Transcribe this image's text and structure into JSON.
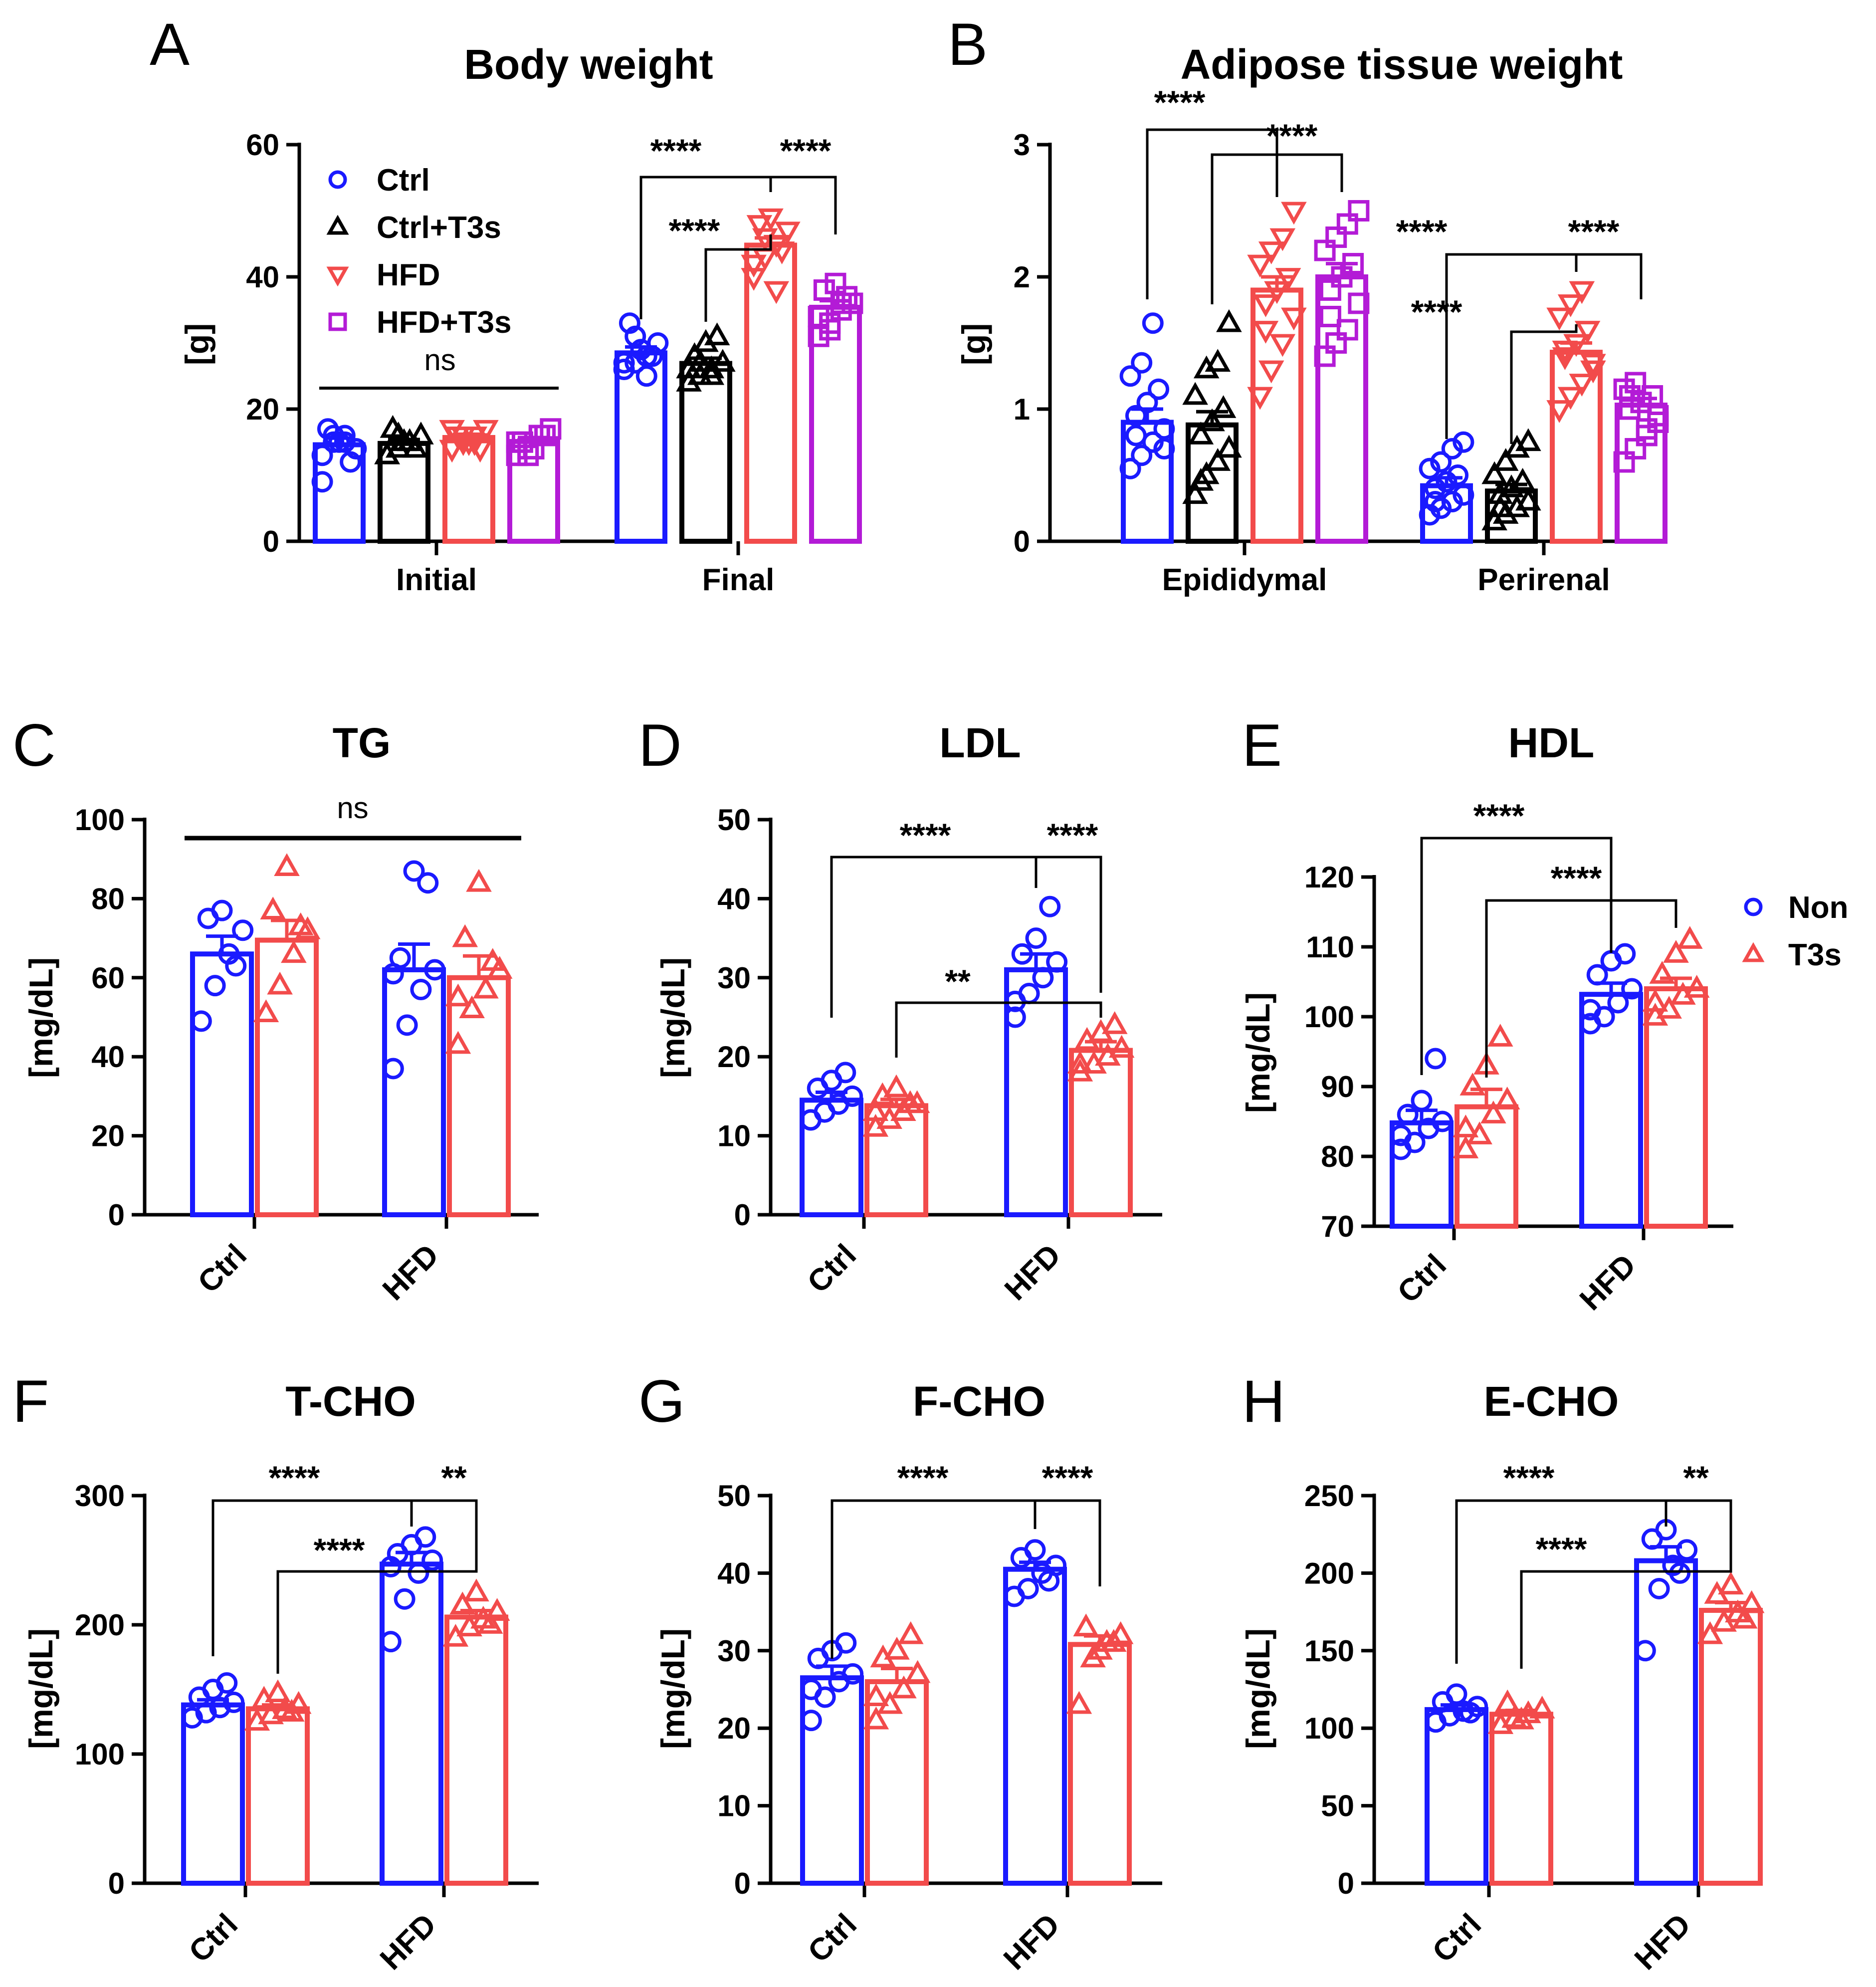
{
  "colors": {
    "blue": "#1a1aff",
    "black": "#000000",
    "red": "#f24b4b",
    "purple": "#b31bd6"
  },
  "chart_data": [
    {
      "id": "A",
      "type": "bar",
      "title": "Body weight",
      "ylabel": "[g]",
      "ylim": [
        0,
        60
      ],
      "yticks": [
        "0",
        "20",
        "40",
        "60"
      ],
      "categories": [
        "Initial",
        "Final"
      ],
      "legend_position": "top-left",
      "series": [
        {
          "name": "Ctrl",
          "marker": "circle",
          "color_key": "blue",
          "values": [
            14.6,
            28.5
          ],
          "sem": [
            1.0,
            0.9
          ],
          "points": [
            [
              13,
              15,
              16,
              14,
              17,
              15,
              12,
              9,
              16,
              15
            ],
            [
              26,
              27,
              28,
              30,
              33,
              29,
              28,
              27,
              31,
              25
            ]
          ]
        },
        {
          "name": "Ctrl+T3s",
          "marker": "triangle",
          "color_key": "black",
          "values": [
            14.8,
            26.9
          ],
          "sem": [
            0.6,
            0.8
          ],
          "points": [
            [
              13,
              14,
              15,
              16,
              17,
              15,
              14,
              13,
              16,
              15
            ],
            [
              24,
              25,
              26,
              27,
              28,
              30,
              31,
              26,
              27,
              25
            ]
          ]
        },
        {
          "name": "HFD",
          "marker": "triangle-down",
          "color_key": "red",
          "values": [
            15.7,
            44.8
          ],
          "sem": [
            0.5,
            1.1
          ],
          "points": [
            [
              14,
              15,
              16,
              17,
              16,
              15,
              14,
              17,
              16,
              15
            ],
            [
              40,
              43,
              45,
              47,
              48,
              49,
              44,
              42,
              46,
              38
            ]
          ]
        },
        {
          "name": "HFD+T3s",
          "marker": "square",
          "color_key": "purple",
          "values": [
            15.1,
            35.4
          ],
          "sem": [
            0.6,
            1.0
          ],
          "points": [
            [
              13,
              14,
              16,
              17,
              15,
              14,
              16,
              15,
              13,
              16
            ],
            [
              31,
              33,
              35,
              36,
              38,
              39,
              37,
              34,
              32,
              36
            ]
          ]
        }
      ],
      "annotations": {
        "ns": "ns",
        "sig": "****"
      }
    },
    {
      "id": "B",
      "type": "bar",
      "title": "Adipose tissue weight",
      "ylabel": "[g]",
      "ylim": [
        0,
        3
      ],
      "yticks": [
        "0",
        "1",
        "2",
        "3"
      ],
      "categories": [
        "Epididymal",
        "Perirenal"
      ],
      "series": [
        {
          "name": "Ctrl",
          "marker": "circle",
          "color_key": "blue",
          "values": [
            0.9,
            0.42
          ],
          "sem": [
            0.1,
            0.06
          ],
          "points": [
            [
              0.55,
              0.65,
              0.75,
              0.85,
              0.95,
              1.05,
              1.15,
              1.25,
              1.35,
              1.65,
              0.7,
              0.8
            ],
            [
              0.2,
              0.25,
              0.3,
              0.35,
              0.4,
              0.45,
              0.5,
              0.55,
              0.6,
              0.7,
              0.75,
              0.3
            ]
          ]
        },
        {
          "name": "Ctrl+T3s",
          "marker": "triangle",
          "color_key": "black",
          "values": [
            0.88,
            0.38
          ],
          "sem": [
            0.1,
            0.05
          ],
          "points": [
            [
              0.35,
              0.5,
              0.6,
              0.7,
              0.8,
              0.9,
              1.0,
              1.1,
              1.3,
              1.35,
              1.65,
              0.45
            ],
            [
              0.15,
              0.2,
              0.25,
              0.3,
              0.35,
              0.4,
              0.45,
              0.5,
              0.6,
              0.7,
              0.75,
              0.25
            ]
          ]
        },
        {
          "name": "HFD",
          "marker": "triangle-down",
          "color_key": "red",
          "values": [
            1.9,
            1.43
          ],
          "sem": [
            0.1,
            0.07
          ],
          "points": [
            [
              1.1,
              1.3,
              1.5,
              1.7,
              1.8,
              1.9,
              2.0,
              2.1,
              2.2,
              2.3,
              2.5,
              1.6
            ],
            [
              1.0,
              1.1,
              1.2,
              1.3,
              1.4,
              1.5,
              1.6,
              1.7,
              1.8,
              1.9,
              1.35,
              1.45
            ]
          ]
        },
        {
          "name": "HFD+T3s",
          "marker": "square",
          "color_key": "purple",
          "values": [
            2.0,
            1.03
          ],
          "sem": [
            0.1,
            0.05
          ],
          "points": [
            [
              1.4,
              1.5,
              1.6,
              1.8,
              1.9,
              2.0,
              2.1,
              2.2,
              2.3,
              2.4,
              2.5,
              1.7
            ],
            [
              0.6,
              0.7,
              0.8,
              0.9,
              1.0,
              1.05,
              1.1,
              1.15,
              1.2,
              0.85,
              0.95,
              1.1
            ]
          ]
        }
      ],
      "annotations": {
        "sig": "****"
      }
    },
    {
      "id": "C",
      "type": "bar",
      "title": "TG",
      "ylabel": "[mg/dL]",
      "ylim": [
        0,
        100
      ],
      "yticks": [
        "0",
        "20",
        "40",
        "60",
        "80",
        "100"
      ],
      "categories": [
        "Ctrl",
        "HFD"
      ],
      "series": [
        {
          "name": "Non",
          "marker": "circle",
          "color_key": "blue",
          "values": [
            66,
            62
          ],
          "sem": [
            4.5,
            6.5
          ],
          "points": [
            [
              49,
              58,
              66,
              72,
              75,
              77,
              63
            ],
            [
              37,
              48,
              57,
              62,
              65,
              87,
              84,
              61
            ]
          ]
        },
        {
          "name": "T3s",
          "marker": "triangle",
          "color_key": "red",
          "values": [
            69.5,
            60
          ],
          "sem": [
            5,
            5.5
          ],
          "points": [
            [
              51,
              58,
              66,
              72,
              77,
              88,
              73
            ],
            [
              43,
              52,
              57,
              62,
              70,
              84,
              64,
              55
            ]
          ]
        }
      ],
      "annotations": {
        "ns": "ns"
      }
    },
    {
      "id": "D",
      "type": "bar",
      "title": "LDL",
      "ylabel": "[mg/dL]",
      "ylim": [
        0,
        50
      ],
      "yticks": [
        "0",
        "10",
        "20",
        "30",
        "40",
        "50"
      ],
      "categories": [
        "Ctrl",
        "HFD"
      ],
      "series": [
        {
          "name": "Non",
          "marker": "circle",
          "color_key": "blue",
          "values": [
            14.5,
            31
          ],
          "sem": [
            1,
            2
          ],
          "points": [
            [
              12,
              13,
              14,
              15,
              16,
              17,
              18,
              12
            ],
            [
              25,
              28,
              30,
              32,
              33,
              35,
              39,
              27
            ]
          ]
        },
        {
          "name": "T3s",
          "marker": "triangle",
          "color_key": "red",
          "values": [
            13.8,
            20.8
          ],
          "sem": [
            0.8,
            1.1
          ],
          "points": [
            [
              11,
              12,
              13,
              14,
              15,
              16,
              14,
              13
            ],
            [
              18,
              19,
              20,
              21,
              22,
              23,
              24,
              19
            ]
          ]
        }
      ],
      "annotations": {
        "sig4": "****",
        "sig2": "**"
      }
    },
    {
      "id": "E",
      "type": "bar",
      "title": "HDL",
      "ylabel": "[mg/dL]",
      "ylim": [
        70,
        120
      ],
      "yticks": [
        "70",
        "80",
        "90",
        "100",
        "110",
        "120"
      ],
      "categories": [
        "Ctrl",
        "HFD"
      ],
      "legend_position": "right",
      "series": [
        {
          "name": "Non",
          "marker": "circle",
          "color_key": "blue",
          "values": [
            84.8,
            103.2
          ],
          "sem": [
            1.8,
            1.6
          ],
          "points": [
            [
              81,
              82,
              84,
              85,
              86,
              88,
              94,
              83
            ],
            [
              99,
              100,
              102,
              104,
              106,
              108,
              109,
              101
            ]
          ]
        },
        {
          "name": "T3s",
          "marker": "triangle",
          "color_key": "red",
          "values": [
            87.1,
            104
          ],
          "sem": [
            2.5,
            1.5
          ],
          "points": [
            [
              81,
              83,
              86,
              88,
              90,
              93,
              97,
              84
            ],
            [
              100,
              101,
              103,
              104,
              106,
              109,
              111,
              102
            ]
          ]
        }
      ],
      "annotations": {
        "sig": "****"
      }
    },
    {
      "id": "F",
      "type": "bar",
      "title": "T-CHO",
      "ylabel": "[mg/dL]",
      "ylim": [
        0,
        300
      ],
      "yticks": [
        "0",
        "100",
        "200",
        "300"
      ],
      "categories": [
        "Ctrl",
        "HFD"
      ],
      "series": [
        {
          "name": "Non",
          "marker": "circle",
          "color_key": "blue",
          "values": [
            138,
            247
          ],
          "sem": [
            4,
            9
          ],
          "points": [
            [
              128,
              132,
              136,
              140,
              144,
              150,
              155
            ],
            [
              187,
              220,
              240,
              250,
              255,
              262,
              268,
              245
            ]
          ]
        },
        {
          "name": "T3s",
          "marker": "triangle",
          "color_key": "red",
          "values": [
            135,
            206
          ],
          "sem": [
            3,
            5
          ],
          "points": [
            [
              125,
              130,
              134,
              138,
              142,
              147,
              132
            ],
            [
              190,
              198,
              204,
              210,
              215,
              225,
              200
            ]
          ]
        }
      ],
      "annotations": {
        "sig4": "****",
        "sig2": "**"
      }
    },
    {
      "id": "G",
      "type": "bar",
      "title": "F-CHO",
      "ylabel": "[mg/dL]",
      "ylim": [
        0,
        50
      ],
      "yticks": [
        "0",
        "10",
        "20",
        "30",
        "40",
        "50"
      ],
      "categories": [
        "Ctrl",
        "HFD"
      ],
      "series": [
        {
          "name": "Non",
          "marker": "circle",
          "color_key": "blue",
          "values": [
            26.5,
            40.5
          ],
          "sem": [
            1.5,
            0.9
          ],
          "points": [
            [
              21,
              24,
              26,
              27,
              29,
              30,
              31,
              25
            ],
            [
              37,
              38,
              40,
              41,
              42,
              43,
              39
            ]
          ]
        },
        {
          "name": "T3s",
          "marker": "triangle",
          "color_key": "red",
          "values": [
            26,
            30.8
          ],
          "sem": [
            1.7,
            1.1
          ],
          "points": [
            [
              21,
              23,
              25,
              27,
              29,
              30,
              32,
              24
            ],
            [
              23,
              29,
              31,
              32,
              33,
              30,
              31
            ]
          ]
        }
      ],
      "annotations": {
        "sig": "****"
      }
    },
    {
      "id": "H",
      "type": "bar",
      "title": "E-CHO",
      "ylabel": "[mg/dL]",
      "ylim": [
        0,
        250
      ],
      "yticks": [
        "0",
        "50",
        "100",
        "150",
        "200",
        "250"
      ],
      "categories": [
        "Ctrl",
        "HFD"
      ],
      "series": [
        {
          "name": "Non",
          "marker": "circle",
          "color_key": "blue",
          "values": [
            112,
            208
          ],
          "sem": [
            3,
            9
          ],
          "points": [
            [
              104,
              108,
              111,
              114,
              117,
              122,
              110
            ],
            [
              150,
              190,
              205,
              215,
              222,
              228,
              200
            ]
          ]
        },
        {
          "name": "T3s",
          "marker": "triangle",
          "color_key": "red",
          "values": [
            109,
            176
          ],
          "sem": [
            2.5,
            5
          ],
          "points": [
            [
              102,
              106,
              109,
              112,
              116,
              105
            ],
            [
              160,
              168,
              174,
              180,
              186,
              192,
              170
            ]
          ]
        }
      ],
      "annotations": {
        "sig4": "****",
        "sig2": "**"
      }
    }
  ]
}
